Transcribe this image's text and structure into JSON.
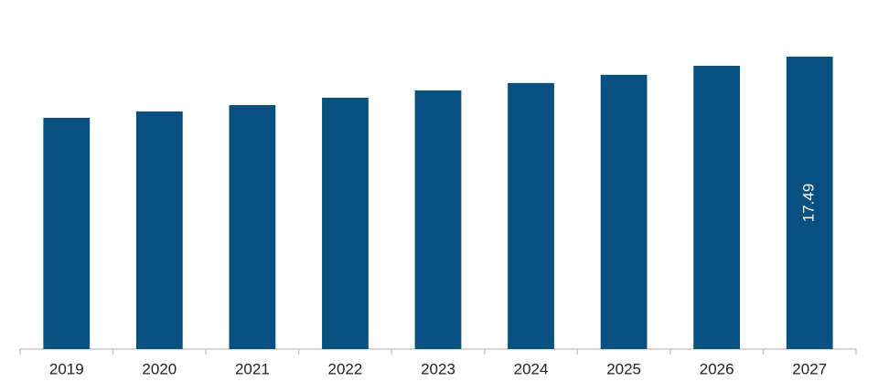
{
  "chart_data": {
    "type": "bar",
    "categories": [
      "2019",
      "2020",
      "2021",
      "2022",
      "2023",
      "2024",
      "2025",
      "2026",
      "2027"
    ],
    "values": [
      13.83,
      14.21,
      14.59,
      15.03,
      15.47,
      15.91,
      16.4,
      16.94,
      17.49
    ],
    "color": "#08507f",
    "ylim": [
      0,
      20
    ]
  }
}
